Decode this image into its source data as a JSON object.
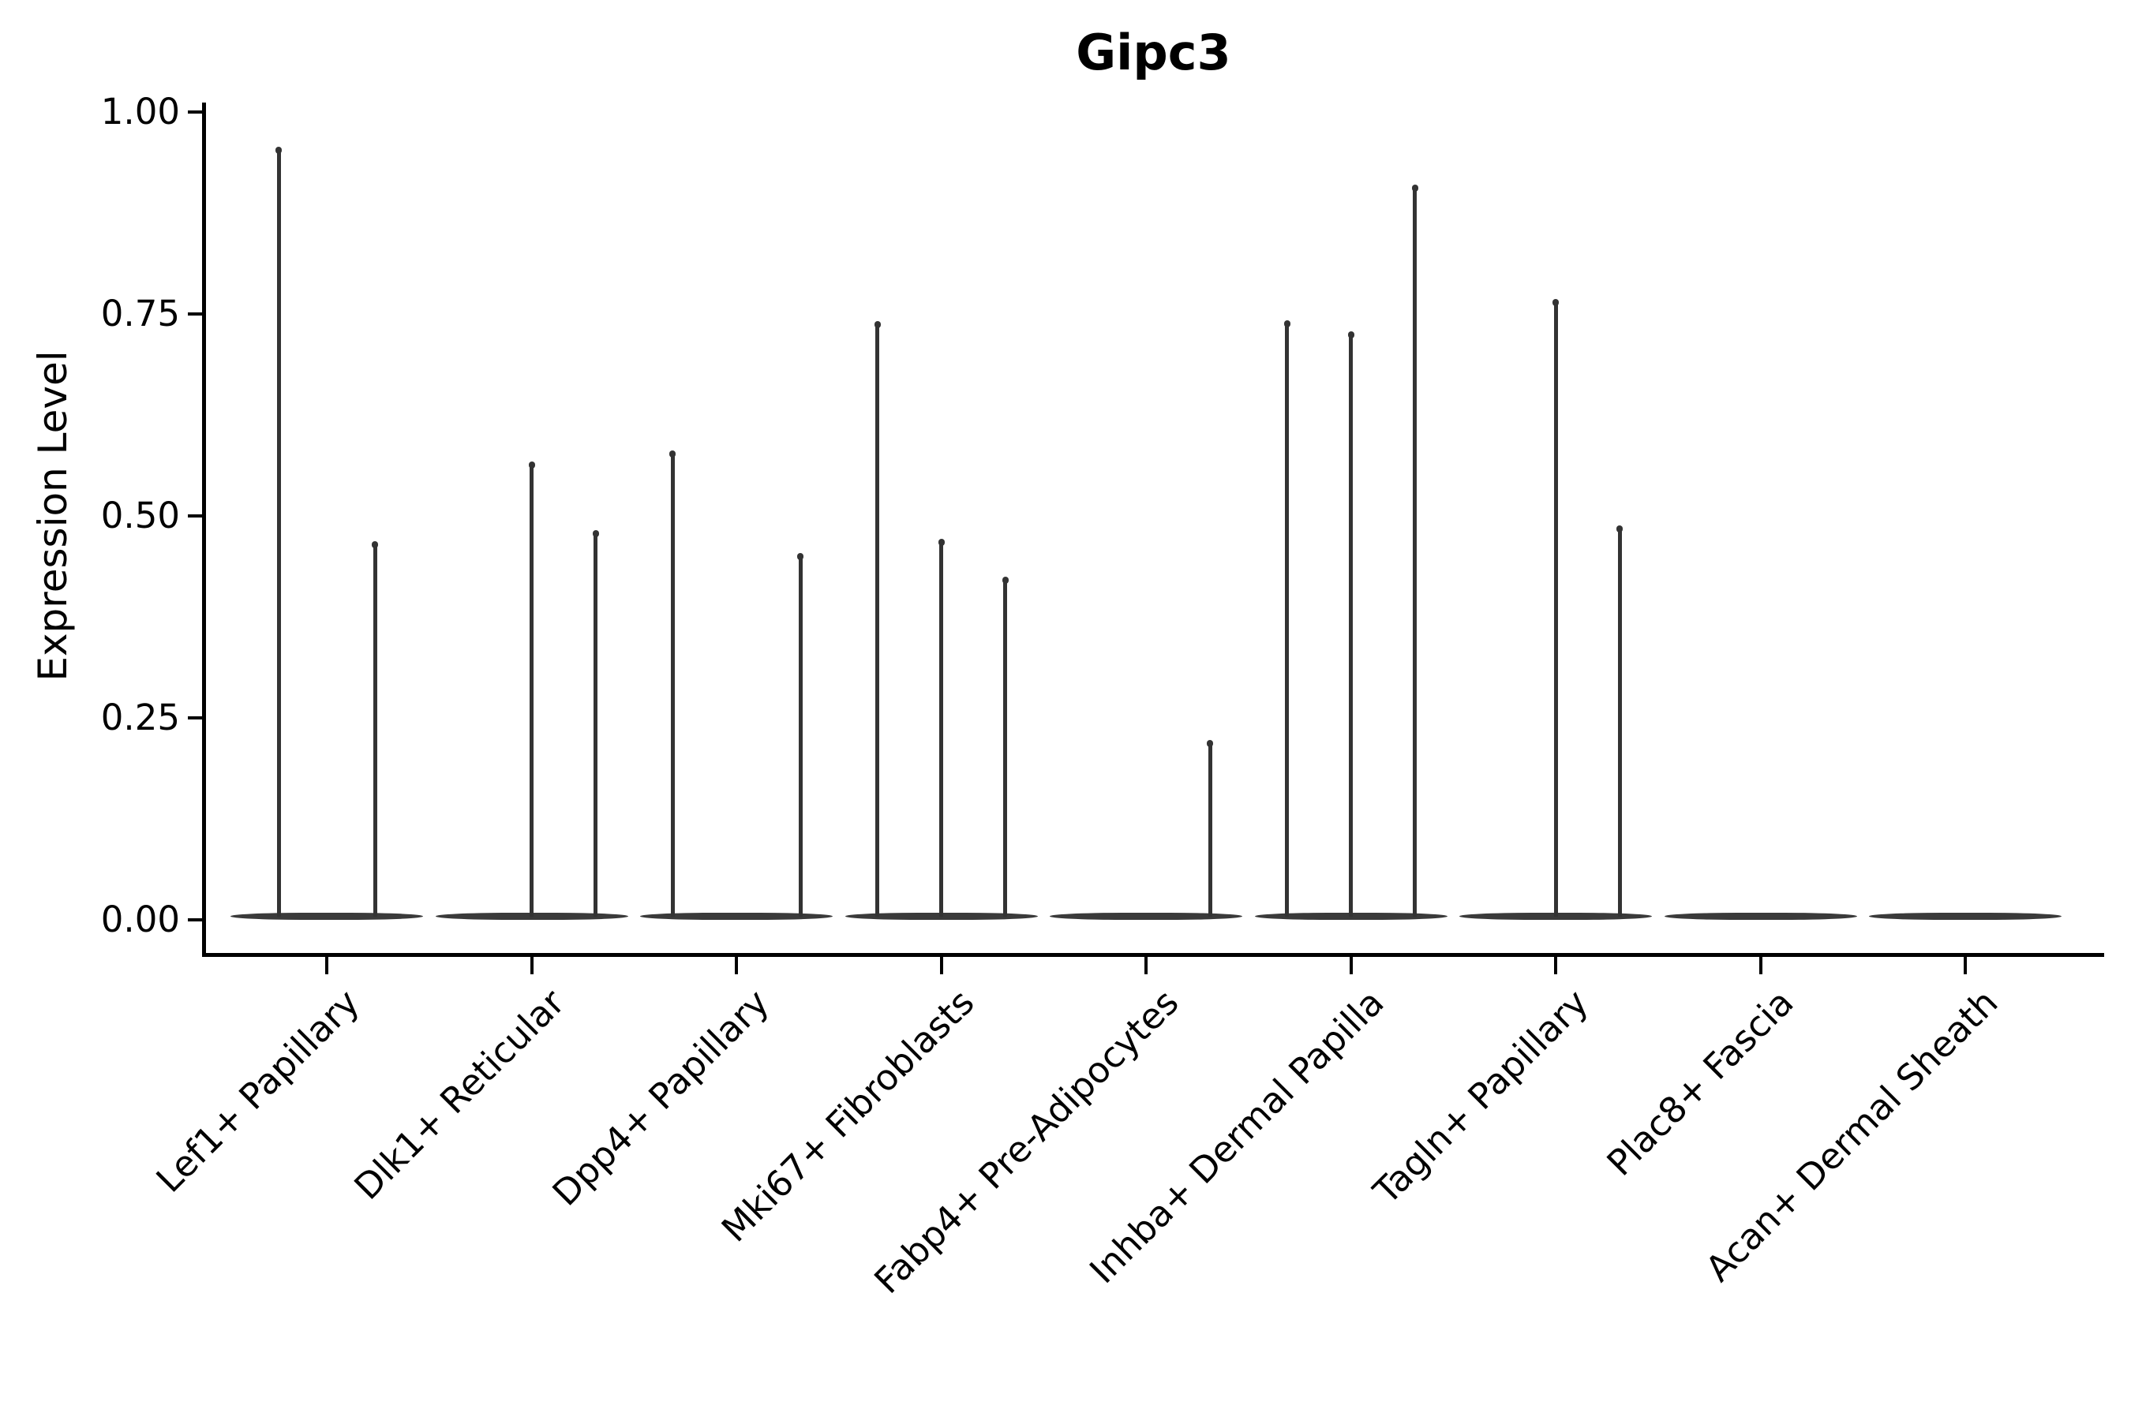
{
  "chart_data": {
    "type": "violin",
    "title": "Gipc3",
    "ylabel": "Expression Level",
    "xlabel": "",
    "ylim": [
      0,
      1
    ],
    "grid": false,
    "legend": false,
    "axis_color": "#000000",
    "violin_color": "#3a3a3a",
    "yticks": [
      {
        "label": "1.00",
        "value": 1.0
      },
      {
        "label": "0.75",
        "value": 0.75
      },
      {
        "label": "0.50",
        "value": 0.5
      },
      {
        "label": "0.25",
        "value": 0.25
      },
      {
        "label": "0.00",
        "value": 0.0
      }
    ],
    "categories": [
      {
        "label": "Lef1+ Papillary",
        "spikes": [
          {
            "dx": -61,
            "value": 0.955
          },
          {
            "dx": 61,
            "value": 0.467
          }
        ]
      },
      {
        "label": "Dlk1+ Reticular",
        "spikes": [
          {
            "dx": 0,
            "value": 0.565
          },
          {
            "dx": 81,
            "value": 0.48
          }
        ]
      },
      {
        "label": "Dpp4+ Papillary",
        "spikes": [
          {
            "dx": -81,
            "value": 0.579
          },
          {
            "dx": 81,
            "value": 0.452
          }
        ]
      },
      {
        "label": "Mki67+ Fibroblasts",
        "spikes": [
          {
            "dx": -81,
            "value": 0.739
          },
          {
            "dx": 0,
            "value": 0.47
          },
          {
            "dx": 81,
            "value": 0.423
          }
        ]
      },
      {
        "label": "Fabp4+ Pre-Adipocytes",
        "spikes": [
          {
            "dx": 81,
            "value": 0.221
          }
        ]
      },
      {
        "label": "Inhba+ Dermal Papilla",
        "spikes": [
          {
            "dx": -81,
            "value": 0.74
          },
          {
            "dx": 0,
            "value": 0.727
          },
          {
            "dx": 81,
            "value": 0.908
          }
        ]
      },
      {
        "label": "Tagln+ Papillary",
        "spikes": [
          {
            "dx": 0,
            "value": 0.767
          },
          {
            "dx": 81,
            "value": 0.486
          }
        ]
      },
      {
        "label": "Plac8+ Fascia",
        "spikes": []
      },
      {
        "label": "Acan+ Dermal Sheath",
        "spikes": []
      }
    ]
  }
}
